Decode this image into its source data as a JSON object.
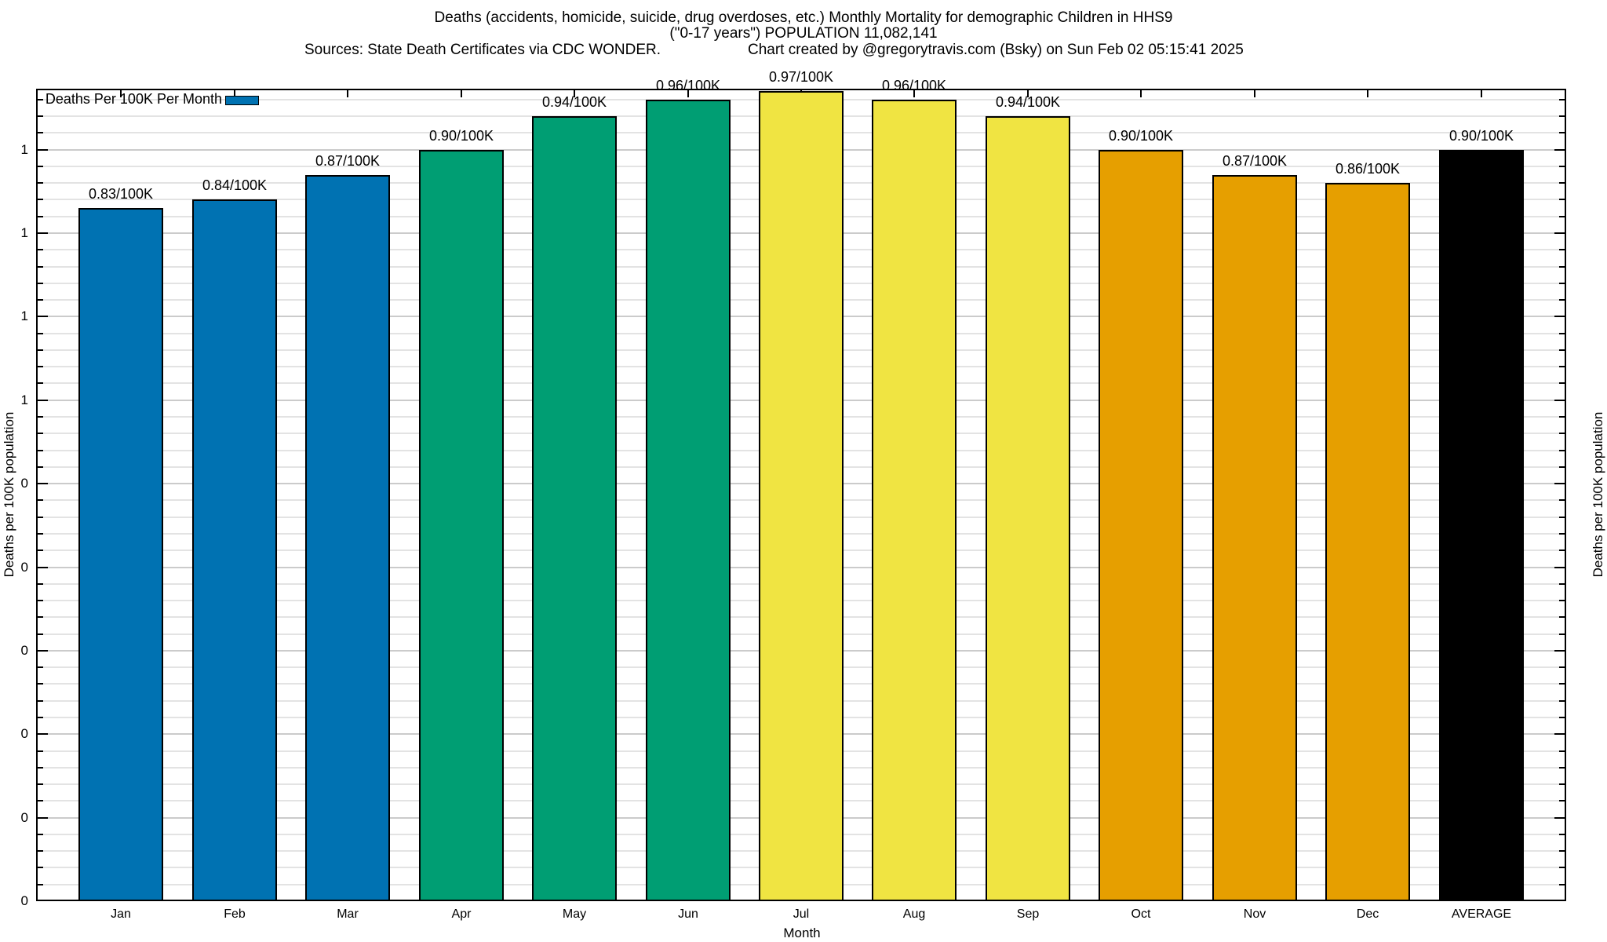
{
  "title": {
    "line1": "Deaths (accidents, homicide, suicide, drug overdoses, etc.) Monthly Mortality for demographic Children in HHS9",
    "line2": "(\"0-17 years\") POPULATION 11,082,141",
    "sources": "Sources: State Death Certificates via CDC WONDER.",
    "credit": "Chart created by @gregorytravis.com (Bsky) on Sun Feb 02 05:15:41 2025"
  },
  "legend": {
    "label": "Deaths Per 100K Per Month",
    "swatch_color": "#0072B2",
    "position": "top-left"
  },
  "axes": {
    "ylabel_left": "Deaths per 100K population",
    "ylabel_right": "Deaths per 100K population",
    "xlabel": "Month"
  },
  "colors": {
    "q1_blue": "#0072B2",
    "q2_green": "#009E73",
    "q3_yellow": "#F0E442",
    "q4_orange": "#E69F00",
    "average_black": "#000000",
    "grid_minor": "#e3e3e3",
    "grid_major": "#cbcbcb"
  },
  "chart_data": {
    "type": "bar",
    "title": "Deaths (accidents, homicide, suicide, drug overdoses, etc.) Monthly Mortality for demographic Children in HHS9 (\"0-17 years\") POPULATION 11,082,141",
    "series_name": "Deaths Per 100K Per Month",
    "categories": [
      "Jan",
      "Feb",
      "Mar",
      "Apr",
      "May",
      "Jun",
      "Jul",
      "Aug",
      "Sep",
      "Oct",
      "Nov",
      "Dec",
      "AVERAGE"
    ],
    "values": [
      0.83,
      0.84,
      0.87,
      0.9,
      0.94,
      0.96,
      0.97,
      0.96,
      0.94,
      0.9,
      0.87,
      0.86,
      0.9
    ],
    "bar_labels": [
      "0.83/100K",
      "0.84/100K",
      "0.87/100K",
      "0.90/100K",
      "0.94/100K",
      "0.96/100K",
      "0.97/100K",
      "0.96/100K",
      "0.94/100K",
      "0.90/100K",
      "0.87/100K",
      "0.86/100K",
      "0.90/100K"
    ],
    "bar_colors": [
      "#0072B2",
      "#0072B2",
      "#0072B2",
      "#009E73",
      "#009E73",
      "#009E73",
      "#F0E442",
      "#F0E442",
      "#F0E442",
      "#E69F00",
      "#E69F00",
      "#E69F00",
      "#000000"
    ],
    "xlabel": "Month",
    "ylabel": "Deaths per 100K population",
    "ylim": [
      0,
      0.973
    ],
    "y_major_tick_step": 0.1,
    "y_minor_tick_step": 0.02,
    "y_ticks": [
      {
        "value": 0.9,
        "label": "1"
      },
      {
        "value": 0.8,
        "label": "1"
      },
      {
        "value": 0.7,
        "label": "1"
      },
      {
        "value": 0.6,
        "label": "1"
      },
      {
        "value": 0.5,
        "label": "0"
      },
      {
        "value": 0.4,
        "label": "0"
      },
      {
        "value": 0.3,
        "label": "0"
      },
      {
        "value": 0.2,
        "label": "0"
      },
      {
        "value": 0.1,
        "label": "0"
      },
      {
        "value": 0.0,
        "label": "0"
      }
    ],
    "grid": "horizontal gridlines at major and minor y ticks, no vertical gridlines",
    "legend_position": "top-left inside plot"
  }
}
